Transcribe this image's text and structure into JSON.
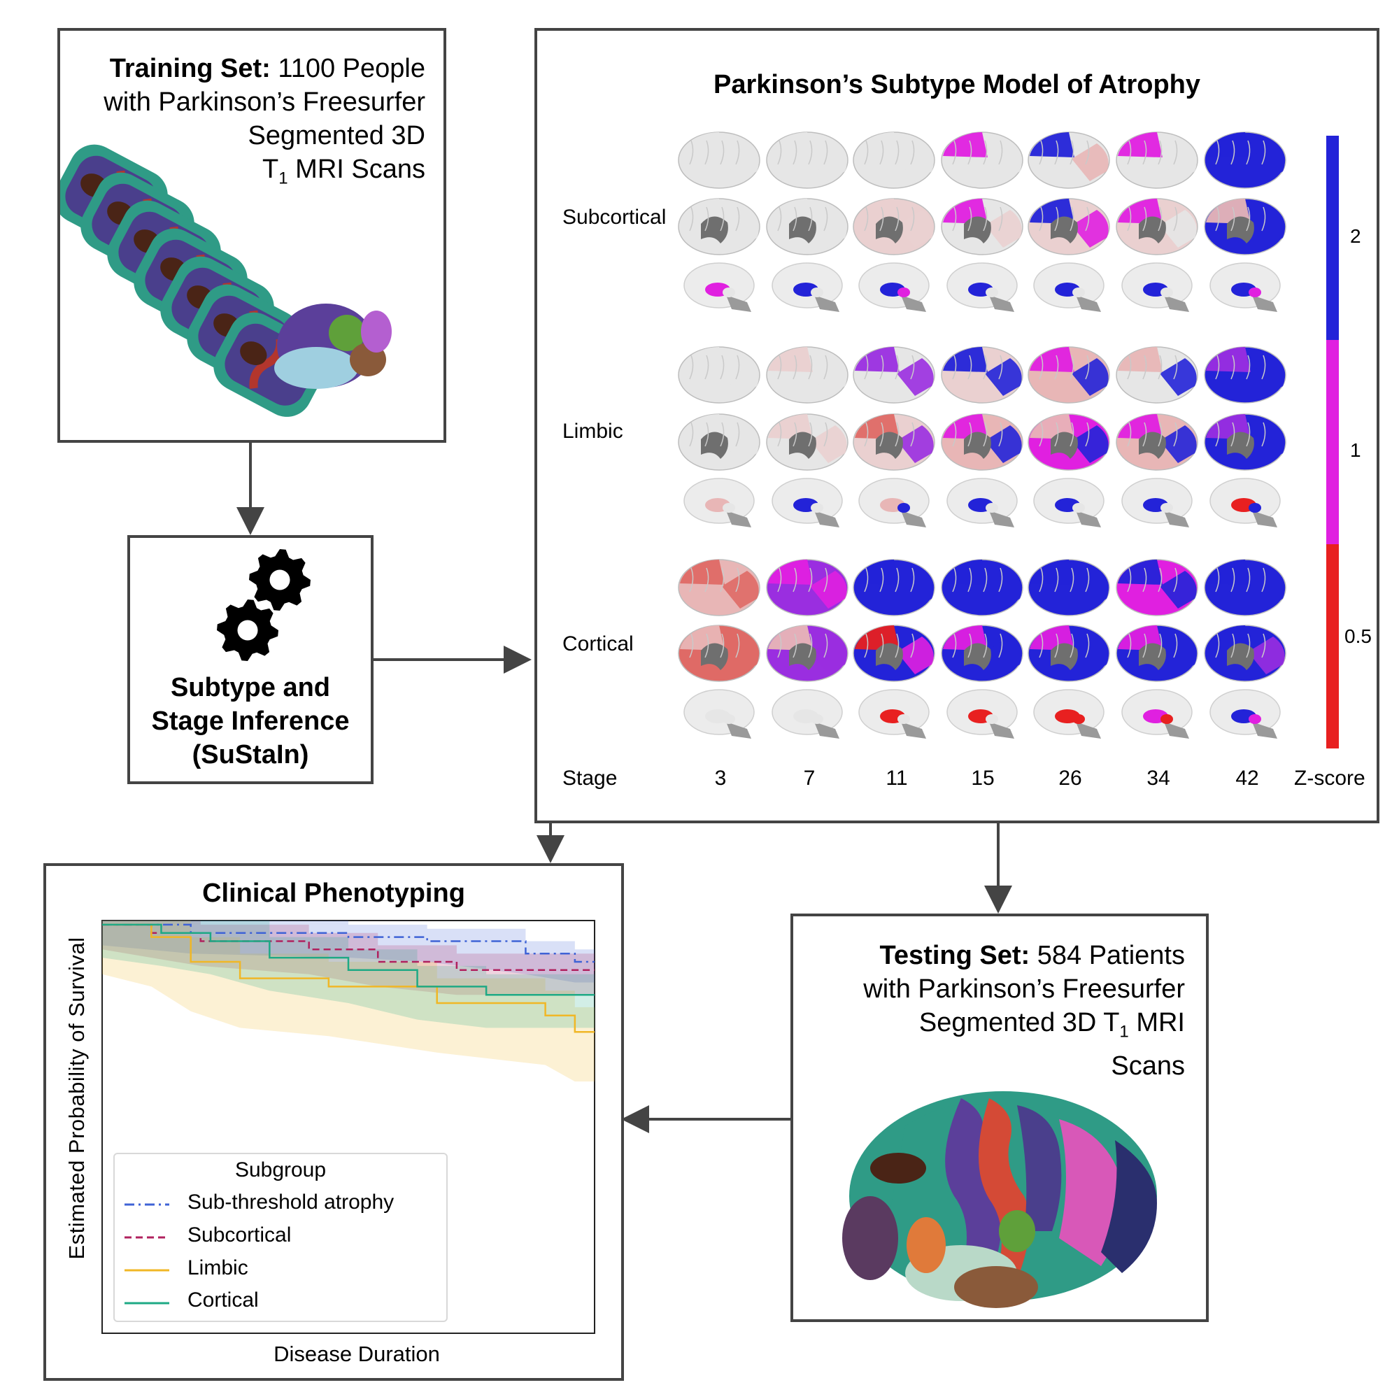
{
  "training": {
    "title_bold": "Training Set:",
    "line1_rest": " 1100 People",
    "line2": "with Parkinson’s Freesurfer",
    "line3": "Segmented 3D",
    "line4_T": "T",
    "line4_sub": "1",
    "line4_rest": " MRI Scans"
  },
  "sustain": {
    "line1": "Subtype and",
    "line2": "Stage Inference",
    "line3": "(SuStaIn)"
  },
  "atrophy": {
    "title": "Parkinson’s Subtype Model of Atrophy",
    "rows": [
      "Subcortical",
      "Limbic",
      "Cortical"
    ],
    "stage_label": "Stage",
    "stages": [
      "3",
      "7",
      "11",
      "15",
      "26",
      "34",
      "42"
    ],
    "zscore_label": "Z-score",
    "colorbar_ticks": [
      "2",
      "1",
      "0.5"
    ],
    "colors": {
      "high": "#2323d8",
      "mid": "#e020e0",
      "low": "#e82020",
      "none": "#e6e6e6",
      "faint": "#ead0d0",
      "light": "#e8b6b6",
      "salmon": "#df6a66",
      "violet": "#9a2ee0"
    }
  },
  "clinical": {
    "title": "Clinical Phenotyping",
    "ylabel": "Estimated Probability of Survival",
    "xlabel": "Disease Duration",
    "legend_title": "Subgroup",
    "legend": [
      {
        "label": "Sub-threshold atrophy",
        "color": "#3f63d6",
        "dash": "14,6,3,6"
      },
      {
        "label": "Subcortical",
        "color": "#b0215e",
        "dash": "10,6"
      },
      {
        "label": "Limbic",
        "color": "#f0b726",
        "dash": ""
      },
      {
        "label": "Cortical",
        "color": "#1ea985",
        "dash": ""
      }
    ]
  },
  "testing": {
    "title_bold": "Testing Set:",
    "line1_rest": " 584 Patients",
    "line2": "with Parkinson’s Freesurfer",
    "line3_pre": "Segmented 3D T",
    "line3_sub": "1",
    "line3_post": " MRI",
    "line4": "Scans"
  }
}
